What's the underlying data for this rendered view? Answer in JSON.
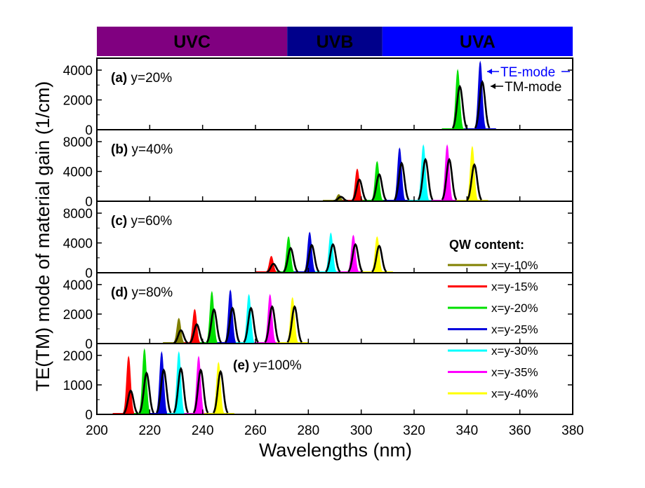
{
  "chart_data": {
    "type": "area",
    "ylabel": "TE(TM) mode of material gain (1/cm)",
    "xlabel": "Wavelengths (nm)",
    "xlim": [
      200,
      380
    ],
    "xticks": [
      200,
      220,
      240,
      260,
      280,
      300,
      320,
      340,
      360,
      380
    ],
    "bands": [
      {
        "name": "UVC",
        "range": [
          200,
          272
        ],
        "color": "#800080"
      },
      {
        "name": "UVB",
        "range": [
          272,
          308
        ],
        "color": "#00008b"
      },
      {
        "name": "UVA",
        "range": [
          308,
          380
        ],
        "color": "#0000ff"
      }
    ],
    "annotations": {
      "te": "TE-mode",
      "tm": "TM-mode"
    },
    "legend": {
      "title": "QW content:",
      "entries": [
        {
          "label": "x=y-10%",
          "color": "#808000"
        },
        {
          "label": "x=y-15%",
          "color": "#ff0000"
        },
        {
          "label": "x=y-20%",
          "color": "#00e000"
        },
        {
          "label": "x=y-25%",
          "color": "#0000dd"
        },
        {
          "label": "x=y-30%",
          "color": "#00ffff"
        },
        {
          "label": "x=y-35%",
          "color": "#ff00ff"
        },
        {
          "label": "x=y-40%",
          "color": "#ffff00"
        }
      ]
    },
    "panels": [
      {
        "tag": "(a)",
        "label": " y=20%",
        "ylim": [
          0,
          4800
        ],
        "yticks": [
          0,
          2000,
          4000
        ],
        "peaks": [
          {
            "series": "x=y-20%",
            "center": 336.5,
            "te": 4000,
            "tm": 2900
          },
          {
            "series": "x=y-25%",
            "center": 345,
            "te": 4550,
            "tm": 3200
          }
        ]
      },
      {
        "tag": "(b)",
        "label": " y=40%",
        "ylim": [
          0,
          9600
        ],
        "yticks": [
          0,
          4000,
          8000
        ],
        "peaks": [
          {
            "series": "x=y-10%",
            "center": 291.5,
            "te": 900,
            "tm": 600
          },
          {
            "series": "x=y-15%",
            "center": 298.5,
            "te": 4300,
            "tm": 2900
          },
          {
            "series": "x=y-20%",
            "center": 306,
            "te": 5300,
            "tm": 3600
          },
          {
            "series": "x=y-25%",
            "center": 314.5,
            "te": 7100,
            "tm": 5100
          },
          {
            "series": "x=y-30%",
            "center": 323.5,
            "te": 7500,
            "tm": 5600
          },
          {
            "series": "x=y-35%",
            "center": 332.5,
            "te": 7500,
            "tm": 5600
          },
          {
            "series": "x=y-40%",
            "center": 342,
            "te": 7300,
            "tm": 4900
          }
        ]
      },
      {
        "tag": "(c)",
        "label": " y=60%",
        "ylim": [
          0,
          9600
        ],
        "yticks": [
          0,
          4000,
          8000
        ],
        "peaks": [
          {
            "series": "x=y-15%",
            "center": 266,
            "te": 2200,
            "tm": 1200
          },
          {
            "series": "x=y-20%",
            "center": 272.5,
            "te": 4800,
            "tm": 3300
          },
          {
            "series": "x=y-25%",
            "center": 280.5,
            "te": 5400,
            "tm": 3700
          },
          {
            "series": "x=y-30%",
            "center": 288.5,
            "te": 5300,
            "tm": 3800
          },
          {
            "series": "x=y-35%",
            "center": 297,
            "te": 5000,
            "tm": 3800
          },
          {
            "series": "x=y-40%",
            "center": 306,
            "te": 4800,
            "tm": 3600
          }
        ]
      },
      {
        "tag": "(d)",
        "label": " y=80%",
        "ylim": [
          0,
          4800
        ],
        "yticks": [
          0,
          2000,
          4000
        ],
        "peaks": [
          {
            "series": "x=y-10%",
            "center": 231,
            "te": 1700,
            "tm": 900
          },
          {
            "series": "x=y-15%",
            "center": 237,
            "te": 2300,
            "tm": 1300
          },
          {
            "series": "x=y-20%",
            "center": 243.5,
            "te": 3500,
            "tm": 2300
          },
          {
            "series": "x=y-25%",
            "center": 250.5,
            "te": 3600,
            "tm": 2400
          },
          {
            "series": "x=y-30%",
            "center": 257.5,
            "te": 3300,
            "tm": 2400
          },
          {
            "series": "x=y-35%",
            "center": 265.5,
            "te": 3300,
            "tm": 2500
          },
          {
            "series": "x=y-40%",
            "center": 274,
            "te": 3100,
            "tm": 2500
          }
        ]
      },
      {
        "tag": "(e)",
        "label": " y=100%",
        "ylim": [
          0,
          2400
        ],
        "yticks": [
          0,
          1000,
          2000
        ],
        "peaks": [
          {
            "series": "x=y-15%",
            "center": 212,
            "te": 1950,
            "tm": 800
          },
          {
            "series": "x=y-20%",
            "center": 218,
            "te": 2200,
            "tm": 1400
          },
          {
            "series": "x=y-25%",
            "center": 224.5,
            "te": 2100,
            "tm": 1500
          },
          {
            "series": "x=y-30%",
            "center": 231,
            "te": 2100,
            "tm": 1550
          },
          {
            "series": "x=y-35%",
            "center": 238.5,
            "te": 1950,
            "tm": 1500
          },
          {
            "series": "x=y-40%",
            "center": 246,
            "te": 1750,
            "tm": 1450
          }
        ]
      }
    ]
  }
}
